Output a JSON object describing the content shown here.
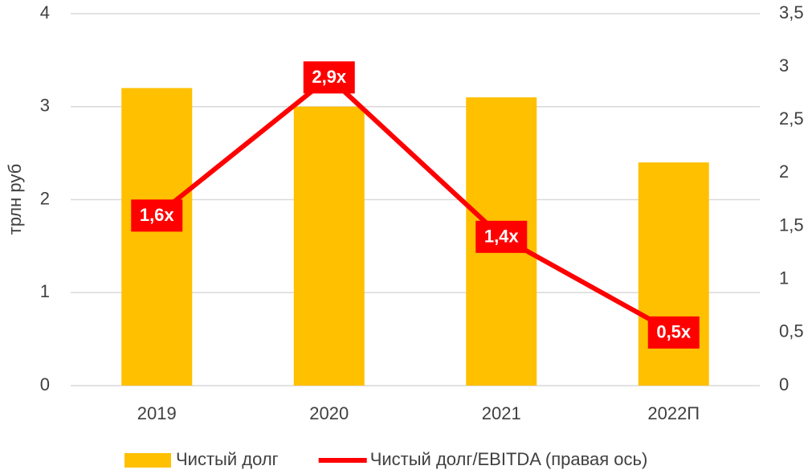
{
  "chart_data": {
    "type": "bar",
    "y_label": "трлн руб",
    "categories": [
      "2019",
      "2020",
      "2021",
      "2022П"
    ],
    "series": [
      {
        "name": "Чистый долг",
        "type": "bar",
        "color": "#FFC000",
        "values": [
          3.2,
          3.0,
          3.1,
          2.4
        ]
      },
      {
        "name": "Чистый долг/EBITDA (правая ось)",
        "type": "line",
        "axis": "y2",
        "color": "#FF0000",
        "values": [
          1.6,
          2.9,
          1.4,
          0.5
        ],
        "value_labels": [
          "1,6x",
          "2,9x",
          "1,4x",
          "0,5x"
        ]
      }
    ],
    "ylim": [
      0,
      4
    ],
    "yticks": [
      0,
      1,
      2,
      3,
      4
    ],
    "y2lim": [
      0,
      3.5
    ],
    "y2ticks": [
      0,
      {
        "value": 0.5,
        "label": "0,5"
      },
      1,
      {
        "value": 1.5,
        "label": "1,5"
      },
      2,
      {
        "value": 2.5,
        "label": "2,5"
      },
      3,
      {
        "value": 3.5,
        "label": "3,5"
      }
    ],
    "grid": true,
    "legend": "bottom"
  }
}
